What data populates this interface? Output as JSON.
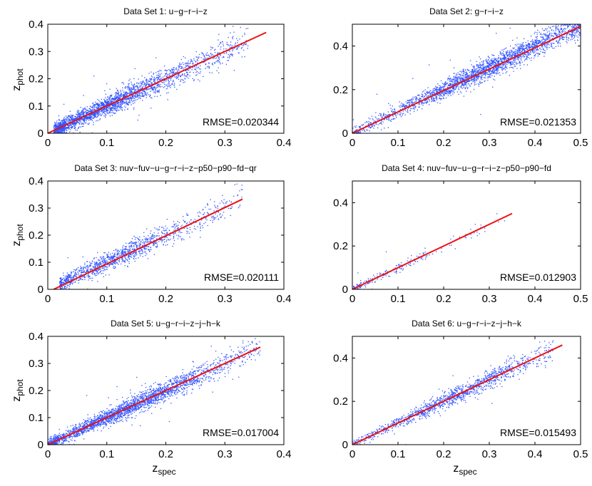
{
  "figure": {
    "ylabel_main": "z",
    "ylabel_sub": "phot",
    "xlabel_main": "z",
    "xlabel_sub": "spec"
  },
  "chart_data": [
    {
      "type": "scatter",
      "title": "Data Set 1: u−g−r−i−z",
      "annotation": "RMSE=0.020344",
      "xlim": [
        0,
        0.4
      ],
      "ylim": [
        0,
        0.4
      ],
      "xticks": [
        "0",
        "0.1",
        "0.2",
        "0.3",
        "0.4"
      ],
      "yticks": [
        "0",
        "0.1",
        "0.2",
        "0.3",
        "0.4"
      ],
      "fit_line": {
        "x": [
          0.0,
          0.37
        ],
        "y": [
          0.0,
          0.37
        ]
      },
      "point_color": "#3355ff",
      "line_color": "#ee1111",
      "spread": {
        "x_min": 0.01,
        "x_max": 0.34,
        "mode": 0.09,
        "sigma_base": 0.012,
        "sigma_slope": 0.05,
        "density": "dense"
      }
    },
    {
      "type": "scatter",
      "title": "Data Set 2: g−r−i−z",
      "annotation": "RMSE=0.021353",
      "xlim": [
        0,
        0.5
      ],
      "ylim": [
        0,
        0.5
      ],
      "xticks": [
        "0",
        "0.1",
        "0.2",
        "0.3",
        "0.4",
        "0.5"
      ],
      "yticks": [
        "0",
        "0.2",
        "0.4"
      ],
      "fit_line": {
        "x": [
          0.0,
          0.5
        ],
        "y": [
          0.0,
          0.49
        ]
      },
      "point_color": "#3355ff",
      "line_color": "#ee1111",
      "spread": {
        "x_min": 0.0,
        "x_max": 0.5,
        "mode": 0.3,
        "sigma_base": 0.014,
        "sigma_slope": 0.03,
        "density": "dense"
      }
    },
    {
      "type": "scatter",
      "title": "Data Set 3: nuv−fuv−u−g−r−i−z−p50−p90−fd−qr",
      "annotation": "RMSE=0.020111",
      "xlim": [
        0,
        0.4
      ],
      "ylim": [
        0,
        0.4
      ],
      "xticks": [
        "0",
        "0.1",
        "0.2",
        "0.3",
        "0.4"
      ],
      "yticks": [
        "0",
        "0.1",
        "0.2",
        "0.3",
        "0.4"
      ],
      "fit_line": {
        "x": [
          0.01,
          0.33
        ],
        "y": [
          0.0,
          0.333
        ]
      },
      "point_color": "#3355ff",
      "line_color": "#ee1111",
      "spread": {
        "x_min": 0.02,
        "x_max": 0.33,
        "mode": 0.1,
        "sigma_base": 0.012,
        "sigma_slope": 0.05,
        "density": "medium"
      }
    },
    {
      "type": "scatter",
      "title": "Data Set 4: nuv−fuv−u−g−r−i−z−p50−p90−fd",
      "annotation": "RMSE=0.012903",
      "xlim": [
        0,
        0.5
      ],
      "ylim": [
        0,
        0.5
      ],
      "xticks": [
        "0",
        "0.1",
        "0.2",
        "0.3",
        "0.4",
        "0.5"
      ],
      "yticks": [
        "0",
        "0.2",
        "0.4"
      ],
      "fit_line": {
        "x": [
          0.0,
          0.35
        ],
        "y": [
          0.0,
          0.35
        ]
      },
      "point_color": "#3355ff",
      "line_color": "#ee1111",
      "spread": {
        "x_min": 0.0,
        "x_max": 0.34,
        "mode": 0.05,
        "sigma_base": 0.008,
        "sigma_slope": 0.03,
        "density": "sparse"
      }
    },
    {
      "type": "scatter",
      "title": "Data Set 5: u−g−r−i−z−j−h−k",
      "annotation": "RMSE=0.017004",
      "xlim": [
        0,
        0.4
      ],
      "ylim": [
        0,
        0.4
      ],
      "xticks": [
        "0",
        "0.1",
        "0.2",
        "0.3",
        "0.4"
      ],
      "yticks": [
        "0",
        "0.1",
        "0.2",
        "0.3",
        "0.4"
      ],
      "fit_line": {
        "x": [
          0.0,
          0.36
        ],
        "y": [
          0.0,
          0.36
        ]
      },
      "point_color": "#3355ff",
      "line_color": "#ee1111",
      "spread": {
        "x_min": 0.0,
        "x_max": 0.36,
        "mode": 0.12,
        "sigma_base": 0.01,
        "sigma_slope": 0.04,
        "density": "dense"
      }
    },
    {
      "type": "scatter",
      "title": "Data Set 6: u−g−r−i−z−j−h−k",
      "annotation": "RMSE=0.015493",
      "xlim": [
        0,
        0.5
      ],
      "ylim": [
        0,
        0.5
      ],
      "xticks": [
        "0",
        "0.1",
        "0.2",
        "0.3",
        "0.4",
        "0.5"
      ],
      "yticks": [
        "0",
        "0.2",
        "0.4"
      ],
      "fit_line": {
        "x": [
          0.0,
          0.46
        ],
        "y": [
          0.0,
          0.46
        ]
      },
      "point_color": "#3355ff",
      "line_color": "#ee1111",
      "spread": {
        "x_min": 0.0,
        "x_max": 0.44,
        "mode": 0.22,
        "sigma_base": 0.01,
        "sigma_slope": 0.04,
        "density": "medium"
      }
    }
  ]
}
